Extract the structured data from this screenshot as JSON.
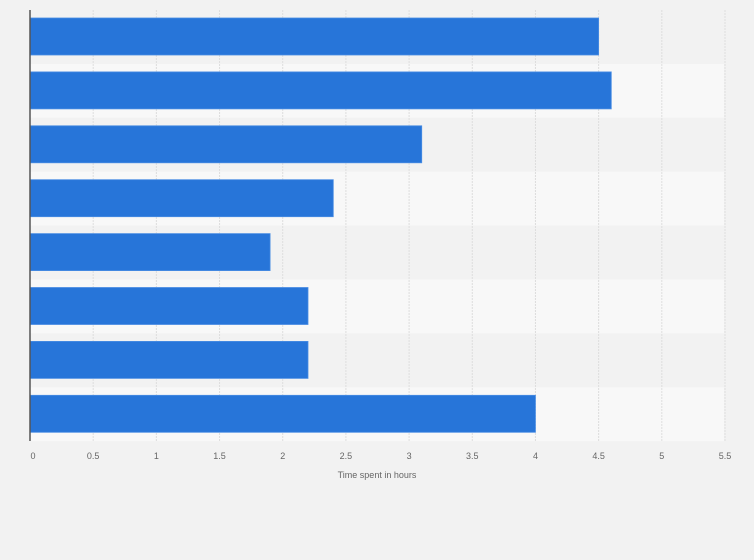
{
  "chart_data": {
    "type": "bar",
    "orientation": "horizontal",
    "title": "",
    "xlabel": "Time spent in hours",
    "ylabel": "",
    "categories": [
      "",
      "",
      "",
      "",
      "",
      "",
      "",
      ""
    ],
    "values": [
      4.5,
      4.6,
      3.1,
      2.4,
      1.9,
      2.2,
      2.2,
      4.0
    ],
    "xlim": [
      0,
      5.5
    ],
    "x_ticks": [
      "0",
      "0.5",
      "1",
      "1.5",
      "2",
      "2.5",
      "3",
      "3.5",
      "4",
      "4.5",
      "5",
      "5.5"
    ],
    "grid": true,
    "legend": null,
    "bar_color": "#2775d9"
  },
  "colors": {
    "background": "#f2f2f2",
    "band_light": "#f8f8f8",
    "band_dark": "#f2f2f2",
    "grid": "#dddddd",
    "axis": "#555555"
  }
}
